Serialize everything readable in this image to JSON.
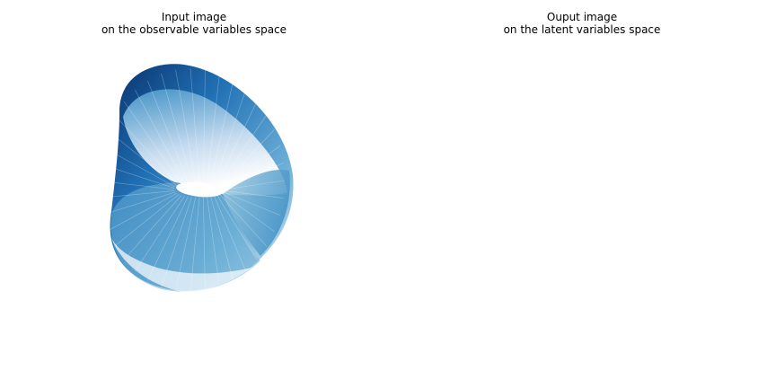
{
  "chart_data": [
    {
      "type": "surface3d",
      "title_line1": "Input image",
      "title_line2": "on the observable variables space",
      "colormap": "Blues",
      "axes_visible": false,
      "grid": false
    },
    {
      "type": "surface3d",
      "title_line1": "Ouput image",
      "title_line2": "on the latent variables space",
      "colormap": "Blues",
      "axes_visible": false,
      "grid": true
    }
  ],
  "colors": {
    "dark": "#08306b",
    "mid_dark": "#2171b5",
    "mid": "#6baed6",
    "light": "#c6dbef",
    "lightest": "#f7fbff"
  }
}
